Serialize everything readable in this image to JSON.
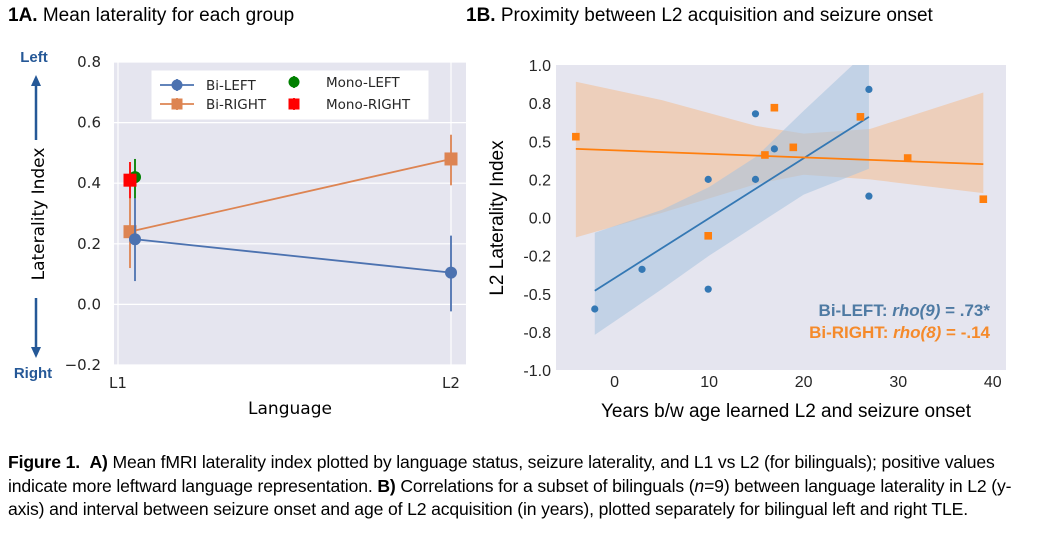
{
  "panel_a": {
    "label": "1A.",
    "title": "Mean laterality for each group"
  },
  "panel_b": {
    "label": "1B.",
    "title": "Proximity between L2 acquisition and seizure onset"
  },
  "caption": {
    "figure_label": "Figure 1.",
    "part_a_label": "A)",
    "part_a_text": " Mean fMRI laterality index plotted by language status, seizure laterality, and L1 vs L2 (for bilinguals); positive values indicate more leftward language representation. ",
    "part_b_label": "B)",
    "part_b_text_1": " Correlations for a subset of bilinguals (",
    "n_italic": "n",
    "part_b_text_2": "=9) between language laterality in L2 (y-axis) and interval between seizure onset and age of L2 acquisition (in years), plotted separately for bilingual left and right TLE."
  },
  "colors": {
    "plot_bg": "#e5e5ef",
    "grid": "#ffffff",
    "bi_left": "#4c72b0",
    "bi_right": "#dd8452",
    "mono_left": "#008000",
    "mono_right": "#ff0000",
    "b_left": "#3478b4",
    "b_right": "#ff7f0e",
    "b_left_band": "#a5c2de",
    "b_right_band": "#efc7aa",
    "annot_left": "#4e7aa3",
    "annot_right": "#f58a2b",
    "direction": "#255897"
  },
  "chart_data": [
    {
      "type": "line",
      "title": "Mean laterality for each group",
      "xlabel": "Language",
      "ylabel": "Laterality Index",
      "direction_labels": {
        "top": "Left",
        "bottom": "Right"
      },
      "categories": [
        "L1",
        "L2"
      ],
      "ylim": [
        -0.2,
        0.8
      ],
      "yticks": [
        -0.2,
        0.0,
        0.2,
        0.4,
        0.6,
        0.8
      ],
      "ytick_labels": [
        "−0.2",
        "0.0",
        "0.2",
        "0.4",
        "0.6",
        "0.8"
      ],
      "grid": true,
      "legend_position": "top-center",
      "series": [
        {
          "name": "Bi-LEFT",
          "marker": "circle",
          "values": [
            0.215,
            0.105
          ],
          "err_low": [
            0.077,
            -0.023
          ],
          "err_high": [
            0.35,
            0.227
          ]
        },
        {
          "name": "Bi-RIGHT",
          "marker": "square",
          "values": [
            0.24,
            0.48
          ],
          "err_low": [
            0.12,
            0.393
          ],
          "err_high": [
            0.35,
            0.56
          ]
        },
        {
          "name": "Mono-LEFT",
          "marker": "circle",
          "values": [
            0.42,
            null
          ],
          "err_low": [
            0.35,
            null
          ],
          "err_high": [
            0.48,
            null
          ]
        },
        {
          "name": "Mono-RIGHT",
          "marker": "square",
          "values": [
            0.41,
            null
          ],
          "err_low": [
            0.35,
            null
          ],
          "err_high": [
            0.47,
            null
          ]
        }
      ]
    },
    {
      "type": "scatter",
      "title": "Proximity between L2 acquisition and seizure onset",
      "xlabel": "Years b/w age learned L2 and seizure onset",
      "ylabel": "L2 Laterality Index",
      "xlim": [
        -6.2,
        41.4
      ],
      "ylim": [
        -1.0,
        1.0
      ],
      "xticks": [
        0,
        10,
        20,
        30,
        40
      ],
      "yticks": [
        1.0,
        0.75,
        0.5,
        0.25,
        0.0,
        -0.25,
        -0.5,
        -0.75,
        -1.0
      ],
      "ytick_labels": [
        "1.0",
        "0.8",
        "0.5",
        "0.2",
        "0.0",
        "-0.2",
        "-0.5",
        "-0.8",
        "-1.0"
      ],
      "grid": false,
      "series": [
        {
          "name": "Bi-LEFT",
          "marker": "circle",
          "points": [
            [
              -2.1,
              -0.6
            ],
            [
              2.9,
              -0.34
            ],
            [
              9.9,
              -0.47
            ],
            [
              9.9,
              0.25
            ],
            [
              14.9,
              0.68
            ],
            [
              14.9,
              0.25
            ],
            [
              16.9,
              0.45
            ],
            [
              26.9,
              0.84
            ],
            [
              26.9,
              0.14
            ]
          ],
          "fit": {
            "x": [
              -2.1,
              26.9
            ],
            "y": [
              -0.48,
              0.66
            ]
          },
          "ci_band": {
            "x": [
              -2.1,
              5,
              10,
              15,
              20,
              26.9
            ],
            "upper": [
              -0.1,
              0.05,
              0.2,
              0.4,
              0.7,
              1.1
            ],
            "lower": [
              -0.77,
              -0.47,
              -0.25,
              -0.05,
              0.15,
              0.32
            ]
          }
        },
        {
          "name": "Bi-RIGHT",
          "marker": "square",
          "points": [
            [
              -4.1,
              0.53
            ],
            [
              9.9,
              -0.12
            ],
            [
              15.9,
              0.41
            ],
            [
              16.9,
              0.72
            ],
            [
              18.9,
              0.46
            ],
            [
              26.0,
              0.66
            ],
            [
              31.0,
              0.39
            ],
            [
              39.0,
              0.12
            ]
          ],
          "fit": {
            "x": [
              -4.1,
              39.0
            ],
            "y": [
              0.45,
              0.35
            ]
          },
          "ci_band": {
            "x": [
              -4.1,
              5,
              15,
              20,
              27,
              39.0
            ],
            "upper": [
              0.89,
              0.77,
              0.6,
              0.55,
              0.58,
              0.82
            ],
            "lower": [
              -0.13,
              0.03,
              0.22,
              0.28,
              0.25,
              0.16
            ]
          }
        }
      ],
      "annotations": [
        {
          "series": "Bi-LEFT",
          "prefix": "Bi-LEFT: ",
          "stat": "rho(9)",
          "value": " =  .73*"
        },
        {
          "series": "Bi-RIGHT",
          "prefix": "Bi-RIGHT: ",
          "stat": "rho(8)",
          "value": " = -.14"
        }
      ]
    }
  ]
}
